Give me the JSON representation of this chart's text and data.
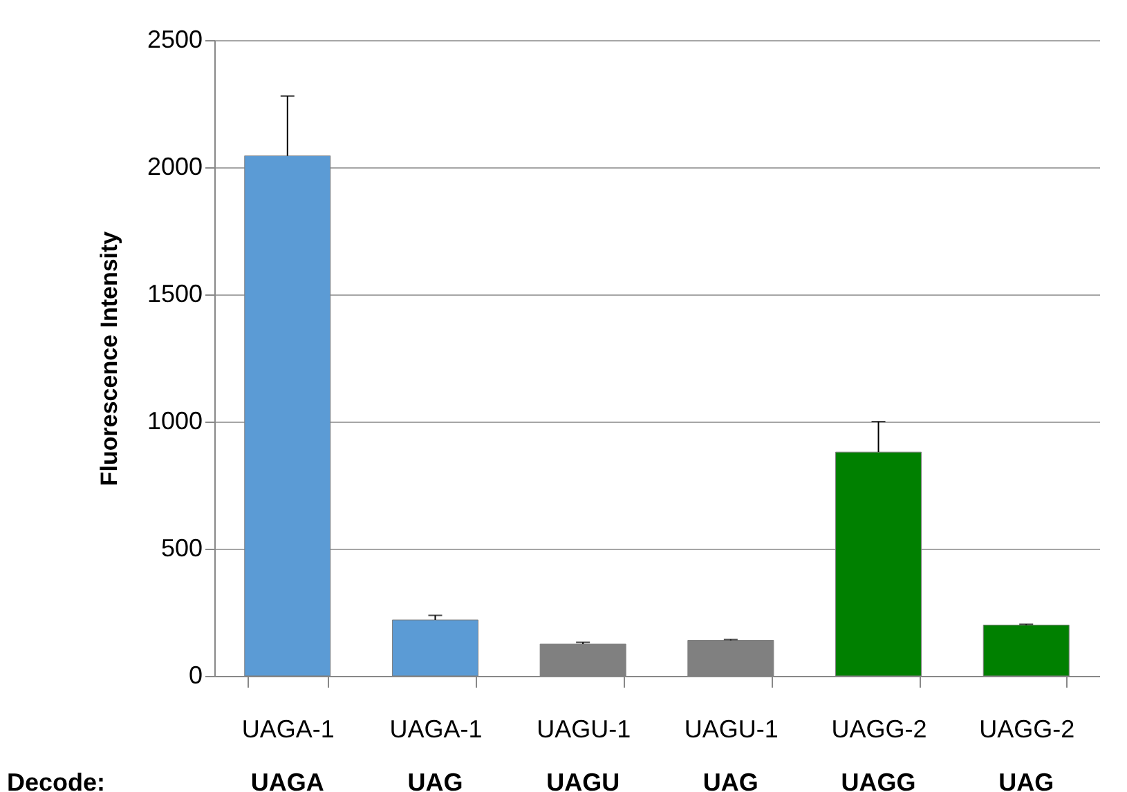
{
  "chart_data": {
    "type": "bar",
    "ylabel": "Fluorescence Intensity",
    "categories": [
      "UAGA-1",
      "UAGA-1",
      "UAGU-1",
      "UAGU-1",
      "UAGG-2",
      "UAGG-2"
    ],
    "values": [
      2045,
      220,
      125,
      140,
      880,
      200
    ],
    "colors": [
      "#5b9bd5",
      "#5b9bd5",
      "#808080",
      "#808080",
      "#008000",
      "#008000"
    ],
    "errors": [
      [
        2045,
        2280
      ],
      [
        220,
        238
      ],
      [
        125,
        132
      ],
      [
        140,
        143
      ],
      [
        880,
        1000
      ],
      [
        200,
        203
      ]
    ],
    "annotations": [
      "Decode:",
      "UAGA",
      "UAG",
      "UAGU",
      "UAG",
      "UAGG",
      "UAG"
    ],
    "ylim": [
      0,
      2500
    ],
    "yticks": [
      0,
      500,
      1000,
      1500,
      2000,
      2500
    ],
    "grid": "y"
  }
}
